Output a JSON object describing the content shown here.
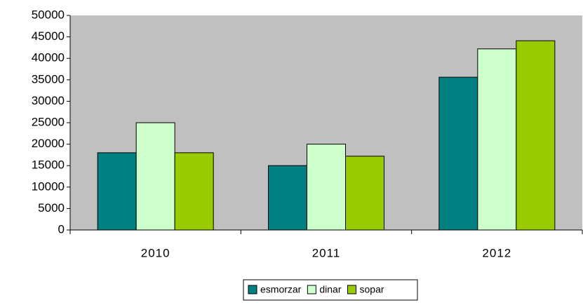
{
  "chart_data": {
    "type": "bar",
    "categories": [
      "2010",
      "2011",
      "2012"
    ],
    "series": [
      {
        "name": "esmorzar",
        "color": "#008080",
        "values": [
          18000,
          15000,
          35600
        ]
      },
      {
        "name": "dinar",
        "color": "#ccffcc",
        "values": [
          25000,
          20000,
          42200
        ]
      },
      {
        "name": "sopar",
        "color": "#99cc00",
        "values": [
          18000,
          17200,
          44100
        ]
      }
    ],
    "ylim": [
      0,
      50000
    ],
    "yticks": [
      0,
      5000,
      10000,
      15000,
      20000,
      25000,
      30000,
      35000,
      40000,
      45000,
      50000
    ],
    "grid": false,
    "plot_background": "#c0c0c0",
    "legend": "bottom"
  }
}
